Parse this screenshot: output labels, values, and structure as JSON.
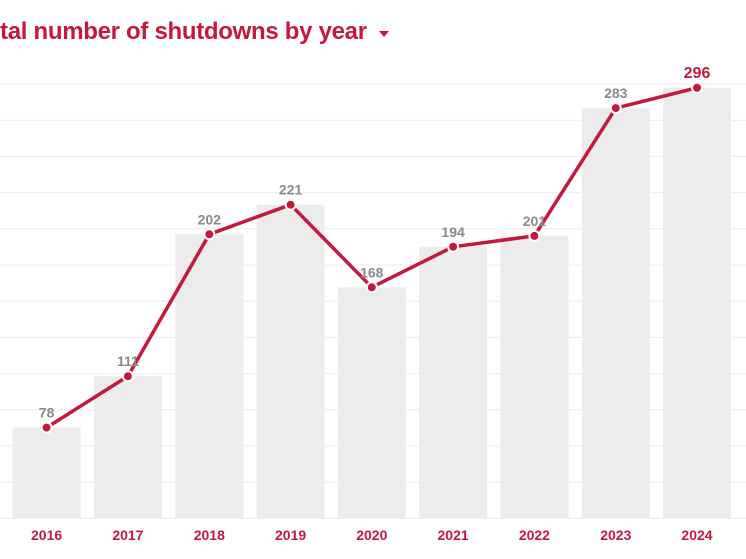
{
  "header": {
    "title": "tal number of shutdowns by year",
    "caret_icon": "chevron-down-icon"
  },
  "colors": {
    "accent": "#c8173f",
    "bar": "#ececec",
    "grid": "#ececec",
    "value_label": "#8a8a8a"
  },
  "chart_data": {
    "type": "bar",
    "title": "tal number of shutdowns by year",
    "xlabel": "",
    "ylabel": "",
    "categories": [
      "2016",
      "2017",
      "2018",
      "2019",
      "2020",
      "2021",
      "2022",
      "2023",
      "2024"
    ],
    "series": [
      {
        "values": [
          78,
          111,
          202,
          221,
          168,
          194,
          201,
          283,
          296
        ]
      }
    ],
    "overlay": "line",
    "highlight_last_value": true,
    "ylim": [
      20,
      310
    ],
    "grid": true,
    "legend": "none"
  }
}
